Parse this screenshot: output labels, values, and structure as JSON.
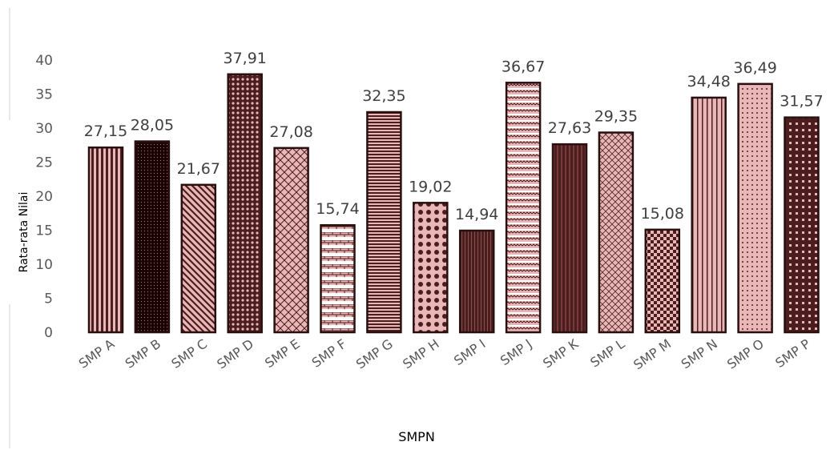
{
  "chart_data": {
    "type": "bar",
    "xlabel": "SMPN",
    "ylabel": "Rata-rata Nilai",
    "ylim": [
      0,
      40
    ],
    "yticks": [
      0,
      5,
      10,
      15,
      20,
      25,
      30,
      35,
      40
    ],
    "grid": false,
    "legend": "none",
    "categories": [
      "SMP A",
      "SMP B",
      "SMP C",
      "SMP D",
      "SMP E",
      "SMP F",
      "SMP G",
      "SMP H",
      "SMP I",
      "SMP J",
      "SMP K",
      "SMP L",
      "SMP M",
      "SMP N",
      "SMP O",
      "SMP P"
    ],
    "values": [
      27.15,
      28.05,
      21.67,
      37.91,
      27.08,
      15.74,
      32.35,
      19.02,
      14.94,
      36.67,
      27.63,
      29.35,
      15.08,
      34.48,
      36.49,
      31.57
    ],
    "data_labels": [
      "27,15",
      "28,05",
      "21,67",
      "37,91",
      "27,08",
      "15,74",
      "32,35",
      "19,02",
      "14,94",
      "36,67",
      "27,63",
      "29,35",
      "15,08",
      "34,48",
      "36,49",
      "31,57"
    ],
    "colors": {
      "bar_fill": "#e9b7b7",
      "bar_dark": "#4a1e1e",
      "bar_stroke": "#2a0f0f",
      "text": "#595959"
    }
  }
}
